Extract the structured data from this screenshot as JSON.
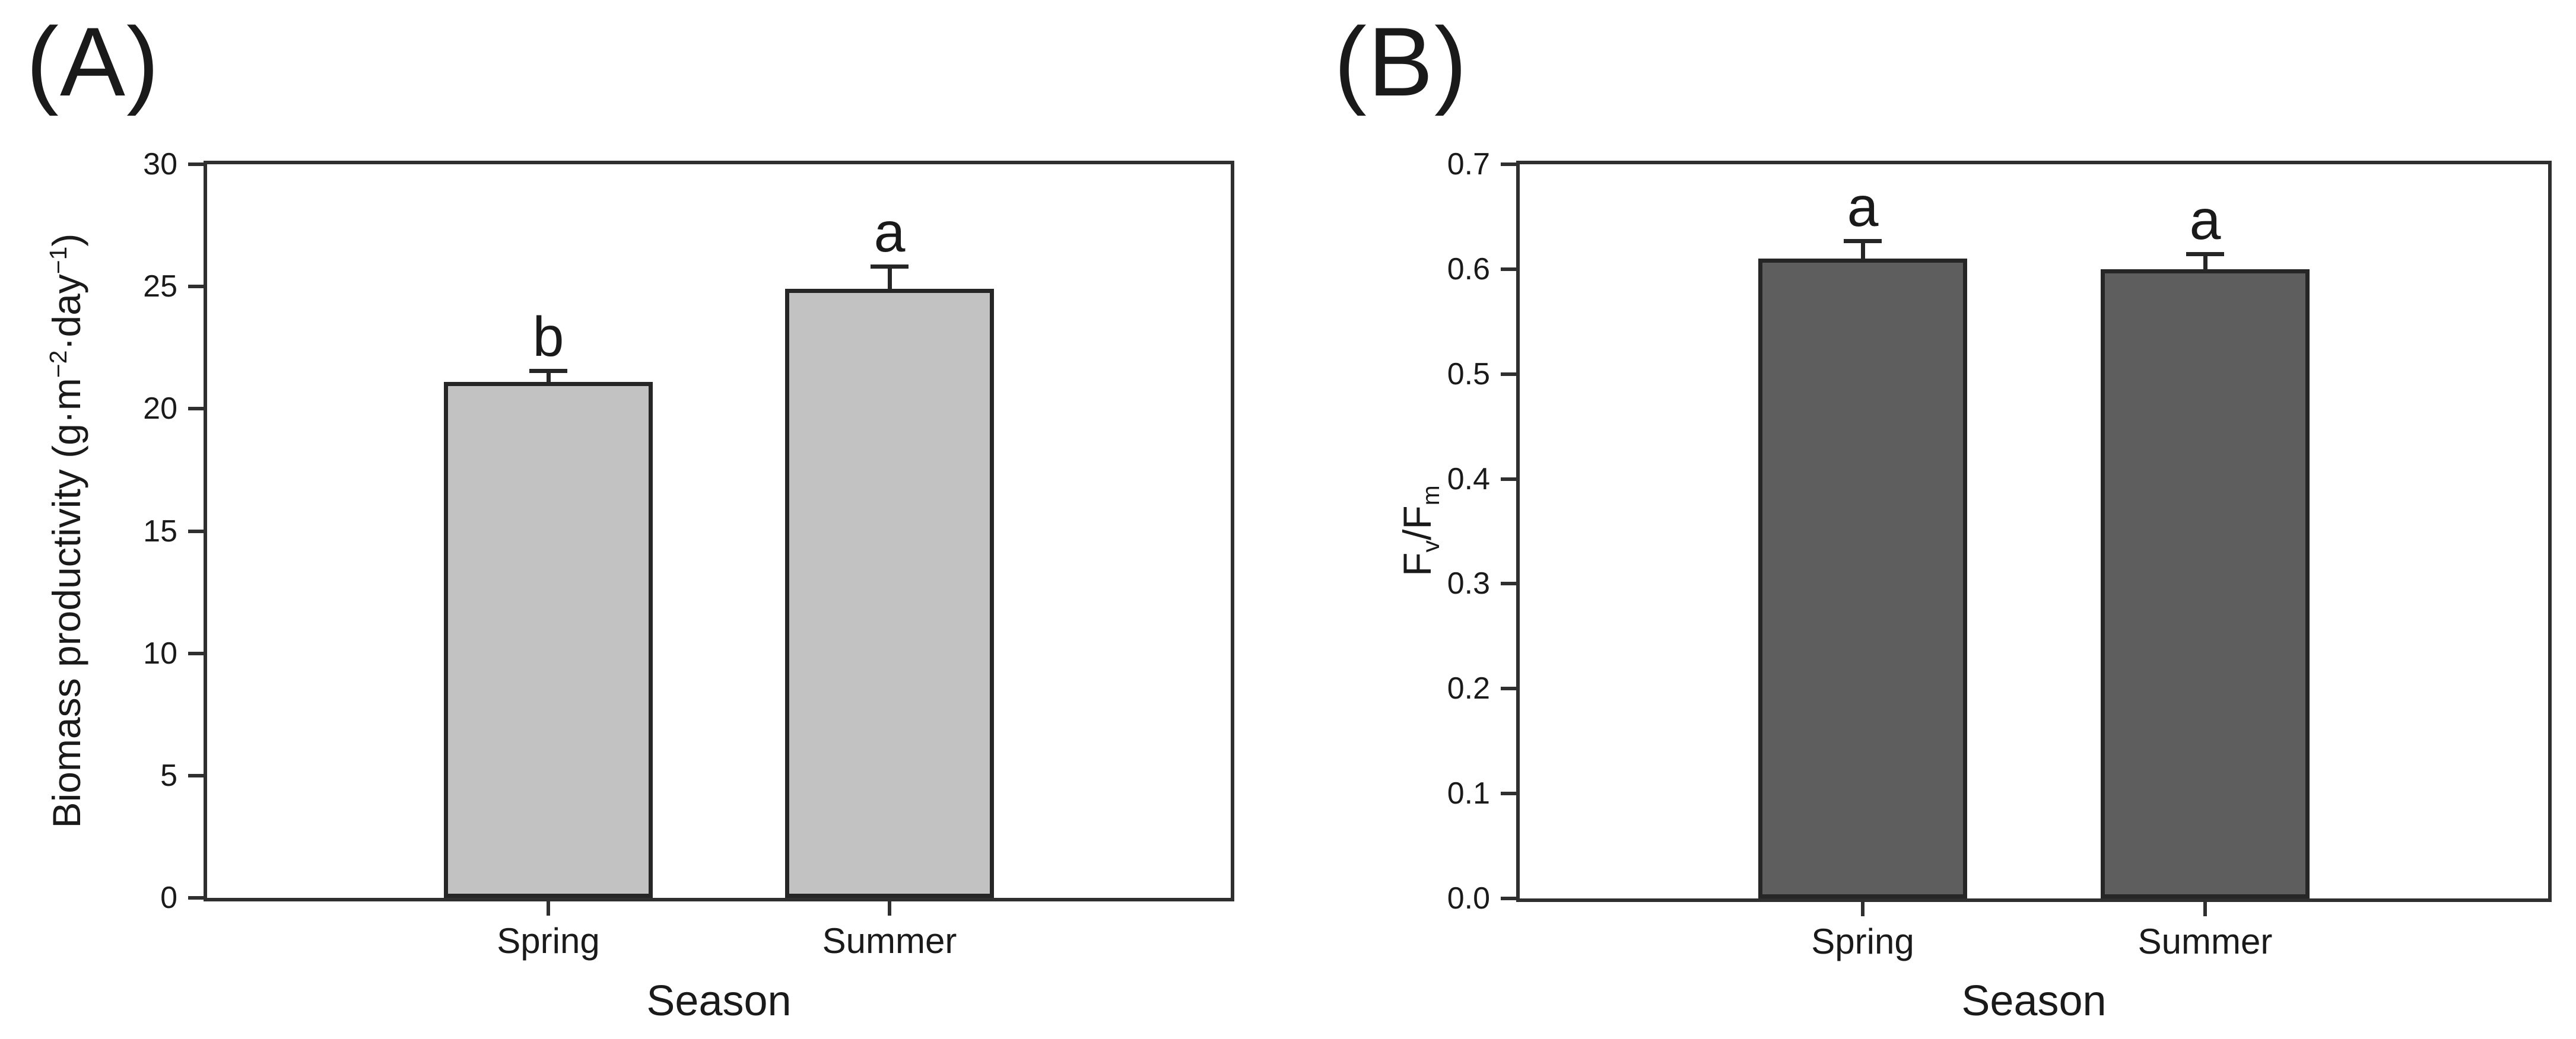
{
  "figure": {
    "background": "#ffffff",
    "frame_color": "#2f2f2f",
    "text_color": "#1a1a1a"
  },
  "chart_data": [
    {
      "type": "bar",
      "panel_label": "(A)",
      "categories": [
        "Spring",
        "Summer"
      ],
      "values": [
        21.1,
        24.9
      ],
      "errors_up": [
        0.4,
        0.85
      ],
      "sig_letters": [
        "b",
        "a"
      ],
      "xlabel": "Season",
      "ylabel": "Biomass productivity (g·m⁻²·day⁻¹)",
      "ylabel_parts": [
        {
          "t": "Biomass productivity (g·m"
        },
        {
          "t": "−2",
          "style": "sup"
        },
        {
          "t": "·day"
        },
        {
          "t": "−1",
          "style": "sup"
        },
        {
          "t": ")"
        }
      ],
      "ylim": [
        0,
        30
      ],
      "ytick_labels": [
        "0",
        "5",
        "10",
        "15",
        "20",
        "25",
        "30"
      ],
      "grid": false,
      "legend": null,
      "bar_fill": "#c2c2c3",
      "bar_border": "#262626"
    },
    {
      "type": "bar",
      "panel_label": "(B)",
      "categories": [
        "Spring",
        "Summer"
      ],
      "values": [
        0.61,
        0.6
      ],
      "errors_up": [
        0.015,
        0.013
      ],
      "sig_letters": [
        "a",
        "a"
      ],
      "xlabel": "Season",
      "ylabel": "Fv/Fm",
      "ylabel_parts": [
        {
          "t": "F"
        },
        {
          "t": "v",
          "style": "sub"
        },
        {
          "t": "/F"
        },
        {
          "t": "m",
          "style": "sub"
        }
      ],
      "ylim": [
        0,
        0.7
      ],
      "ytick_labels": [
        "0.0",
        "0.1",
        "0.2",
        "0.3",
        "0.4",
        "0.5",
        "0.6",
        "0.7"
      ],
      "grid": false,
      "legend": null,
      "bar_fill": "#5e5e5f",
      "bar_border": "#262626"
    }
  ]
}
